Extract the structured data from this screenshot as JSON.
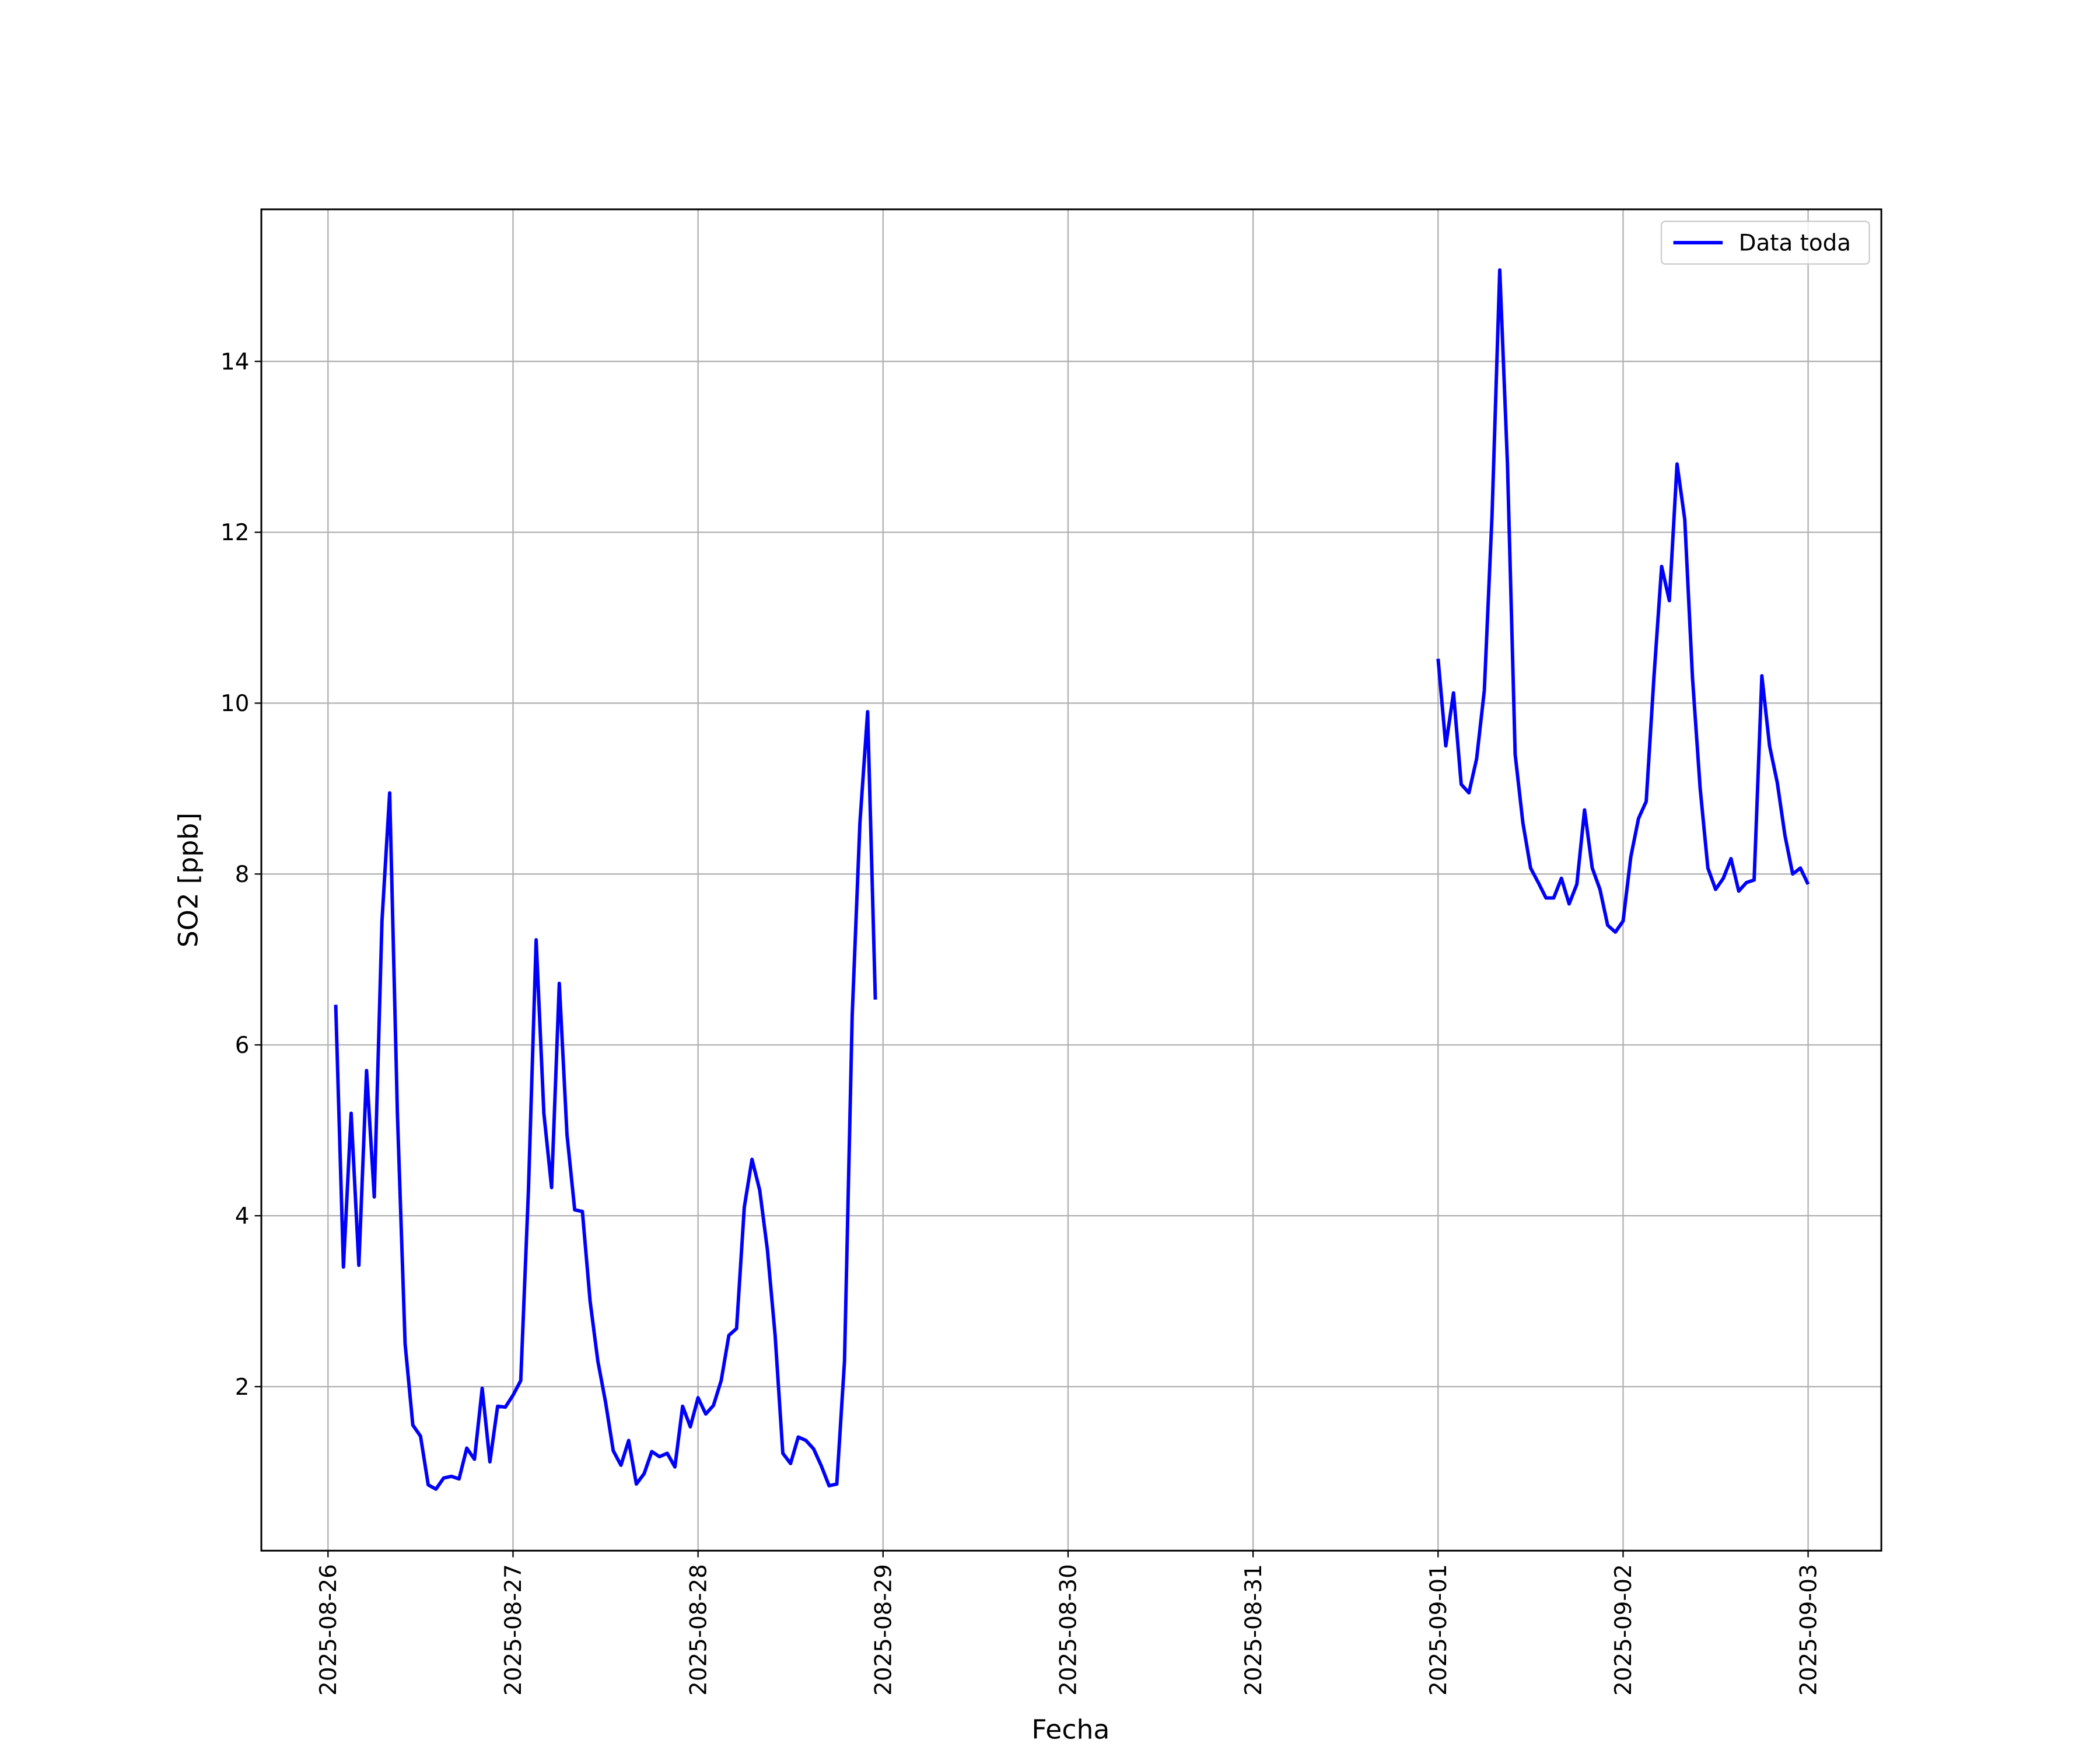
{
  "chart_data": {
    "type": "line",
    "xlabel": "Fecha",
    "ylabel": "SO2 [ppb]",
    "x": [
      "2025-08-26 01:00",
      "2025-08-26 02:00",
      "2025-08-26 03:00",
      "2025-08-26 04:00",
      "2025-08-26 05:00",
      "2025-08-26 06:00",
      "2025-08-26 07:00",
      "2025-08-26 08:00",
      "2025-08-26 09:00",
      "2025-08-26 10:00",
      "2025-08-26 11:00",
      "2025-08-26 12:00",
      "2025-08-26 13:00",
      "2025-08-26 14:00",
      "2025-08-26 15:00",
      "2025-08-26 16:00",
      "2025-08-26 17:00",
      "2025-08-26 18:00",
      "2025-08-26 19:00",
      "2025-08-26 20:00",
      "2025-08-26 21:00",
      "2025-08-26 22:00",
      "2025-08-26 23:00",
      "2025-08-27 00:00",
      "2025-08-27 01:00",
      "2025-08-27 02:00",
      "2025-08-27 03:00",
      "2025-08-27 04:00",
      "2025-08-27 05:00",
      "2025-08-27 06:00",
      "2025-08-27 07:00",
      "2025-08-27 08:00",
      "2025-08-27 09:00",
      "2025-08-27 10:00",
      "2025-08-27 11:00",
      "2025-08-27 12:00",
      "2025-08-27 13:00",
      "2025-08-27 14:00",
      "2025-08-27 15:00",
      "2025-08-27 16:00",
      "2025-08-27 17:00",
      "2025-08-27 18:00",
      "2025-08-27 19:00",
      "2025-08-27 20:00",
      "2025-08-27 21:00",
      "2025-08-27 22:00",
      "2025-08-27 23:00",
      "2025-08-28 00:00",
      "2025-08-28 01:00",
      "2025-08-28 02:00",
      "2025-08-28 03:00",
      "2025-08-28 04:00",
      "2025-08-28 05:00",
      "2025-08-28 06:00",
      "2025-08-28 07:00",
      "2025-08-28 08:00",
      "2025-08-28 09:00",
      "2025-08-28 10:00",
      "2025-08-28 11:00",
      "2025-08-28 12:00",
      "2025-08-28 13:00",
      "2025-08-28 14:00",
      "2025-08-28 15:00",
      "2025-08-28 16:00",
      "2025-08-28 17:00",
      "2025-08-28 18:00",
      "2025-08-28 19:00",
      "2025-08-28 20:00",
      "2025-08-28 21:00",
      "2025-08-28 22:00",
      "2025-08-28 23:00",
      "2025-08-30 12:00",
      "2025-09-01 00:00",
      "2025-09-01 01:00",
      "2025-09-01 02:00",
      "2025-09-01 03:00",
      "2025-09-01 04:00",
      "2025-09-01 05:00",
      "2025-09-01 06:00",
      "2025-09-01 07:00",
      "2025-09-01 08:00",
      "2025-09-01 09:00",
      "2025-09-01 10:00",
      "2025-09-01 11:00",
      "2025-09-01 12:00",
      "2025-09-01 13:00",
      "2025-09-01 14:00",
      "2025-09-01 15:00",
      "2025-09-01 16:00",
      "2025-09-01 17:00",
      "2025-09-01 18:00",
      "2025-09-01 19:00",
      "2025-09-01 20:00",
      "2025-09-01 21:00",
      "2025-09-01 22:00",
      "2025-09-01 23:00",
      "2025-09-02 00:00",
      "2025-09-02 01:00",
      "2025-09-02 02:00",
      "2025-09-02 03:00",
      "2025-09-02 04:00",
      "2025-09-02 05:00",
      "2025-09-02 06:00",
      "2025-09-02 07:00",
      "2025-09-02 08:00",
      "2025-09-02 09:00",
      "2025-09-02 10:00",
      "2025-09-02 11:00",
      "2025-09-02 12:00",
      "2025-09-02 13:00",
      "2025-09-02 14:00",
      "2025-09-02 15:00",
      "2025-09-02 16:00",
      "2025-09-02 17:00",
      "2025-09-02 18:00",
      "2025-09-02 19:00",
      "2025-09-02 20:00",
      "2025-09-02 21:00",
      "2025-09-02 22:00",
      "2025-09-02 23:00",
      "2025-09-03 00:00"
    ],
    "series": [
      {
        "name": "Data toda",
        "color": "#0000ff",
        "values": [
          6.47,
          3.4,
          5.2,
          3.42,
          5.7,
          4.22,
          7.45,
          8.95,
          5.2,
          2.5,
          1.55,
          1.42,
          0.85,
          0.8,
          0.93,
          0.95,
          0.92,
          1.28,
          1.15,
          1.98,
          1.12,
          1.77,
          1.76,
          1.9,
          2.07,
          4.3,
          7.23,
          5.2,
          4.33,
          6.72,
          4.95,
          4.07,
          4.05,
          3.0,
          2.3,
          1.82,
          1.25,
          1.08,
          1.37,
          0.86,
          0.98,
          1.24,
          1.18,
          1.22,
          1.06,
          1.77,
          1.53,
          1.87,
          1.68,
          1.78,
          2.07,
          2.6,
          2.68,
          4.1,
          4.66,
          4.3,
          3.6,
          2.6,
          1.22,
          1.1,
          1.41,
          1.37,
          1.27,
          1.07,
          0.84,
          0.86,
          2.3,
          6.35,
          8.6,
          9.9,
          6.53,
          null,
          10.52,
          9.5,
          10.12,
          9.05,
          8.95,
          9.35,
          10.15,
          12.2,
          15.07,
          12.8,
          9.4,
          8.6,
          8.07,
          7.9,
          7.72,
          7.72,
          7.95,
          7.65,
          7.88,
          8.75,
          8.07,
          7.82,
          7.4,
          7.32,
          7.45,
          8.2,
          8.65,
          8.85,
          10.3,
          11.6,
          11.2,
          12.8,
          12.15,
          10.3,
          9.0,
          8.07,
          7.82,
          7.95,
          8.18,
          7.8,
          7.9,
          7.93,
          10.32,
          9.5,
          9.07,
          8.45,
          8.0,
          8.07,
          7.88
        ]
      }
    ],
    "xlim": [
      "2025-08-25 15:21",
      "2025-09-03 09:30"
    ],
    "xticks": [
      "2025-08-26",
      "2025-08-27",
      "2025-08-28",
      "2025-08-29",
      "2025-08-30",
      "2025-08-31",
      "2025-09-01",
      "2025-09-02",
      "2025-09-03"
    ],
    "ylim": [
      0.08,
      15.78
    ],
    "yticks": [
      2,
      4,
      6,
      8,
      10,
      12,
      14
    ],
    "grid": true,
    "legend": "upper right"
  }
}
